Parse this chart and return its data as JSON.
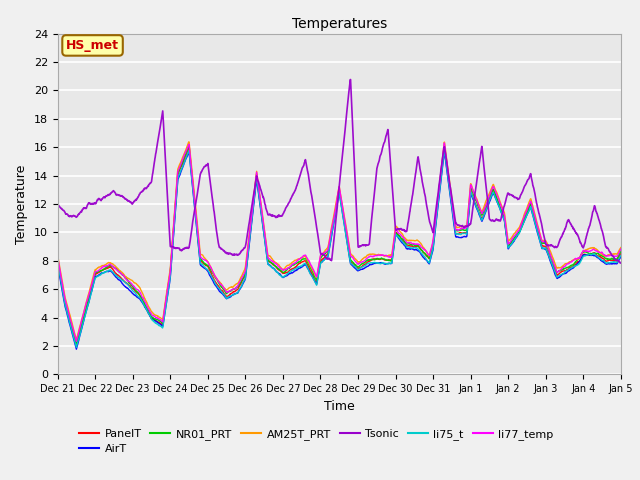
{
  "title": "Temperatures",
  "xlabel": "Time",
  "ylabel": "Temperature",
  "ylim": [
    0,
    24
  ],
  "fig_facecolor": "#f0f0f0",
  "ax_facecolor": "#e8e8e8",
  "annotation_text": "HS_met",
  "annotation_bg": "#ffffaa",
  "annotation_border": "#996600",
  "annotation_text_color": "#cc0000",
  "series_order": [
    "PanelT",
    "AirT",
    "NR01_PRT",
    "AM25T_PRT",
    "Tsonic",
    "li75_t",
    "li77_temp"
  ],
  "series": {
    "PanelT": {
      "color": "#ff0000",
      "lw": 1.0
    },
    "AirT": {
      "color": "#0000ff",
      "lw": 1.0
    },
    "NR01_PRT": {
      "color": "#00cc00",
      "lw": 1.0
    },
    "AM25T_PRT": {
      "color": "#ff9900",
      "lw": 1.0
    },
    "Tsonic": {
      "color": "#9900cc",
      "lw": 1.2
    },
    "li75_t": {
      "color": "#00cccc",
      "lw": 1.0
    },
    "li77_temp": {
      "color": "#ff00ff",
      "lw": 1.0
    }
  },
  "xtick_labels": [
    "Dec 21",
    "Dec 22",
    "Dec 23",
    "Dec 24",
    "Dec 25",
    "Dec 26",
    "Dec 27",
    "Dec 28",
    "Dec 29",
    "Dec 30",
    "Dec 31",
    "Jan 1",
    "Jan 2",
    "Jan 3",
    "Jan 4",
    "Jan 5"
  ],
  "ytick_labels": [
    0,
    2,
    4,
    6,
    8,
    10,
    12,
    14,
    16,
    18,
    20,
    22,
    24
  ],
  "n_days": 15,
  "pts_per_day": 144,
  "base_profile_x": [
    0,
    0.2,
    0.5,
    0.7,
    1,
    1.4,
    1.8,
    2.2,
    2.5,
    2.8,
    3.0,
    3.2,
    3.5,
    3.8,
    4.0,
    4.2,
    4.5,
    4.8,
    5.0,
    5.3,
    5.6,
    6.0,
    6.3,
    6.6,
    6.9,
    7.0,
    7.2,
    7.5,
    7.8,
    8.0,
    8.3,
    8.6,
    8.9,
    9.0,
    9.3,
    9.6,
    9.9,
    10.0,
    10.3,
    10.6,
    10.9,
    11.0,
    11.3,
    11.6,
    11.9,
    12.0,
    12.3,
    12.6,
    12.9,
    13.0,
    13.3,
    13.6,
    13.9,
    14.0,
    14.3,
    14.6,
    14.9,
    15.0
  ],
  "base_profile_y": [
    8,
    5,
    2,
    4,
    7,
    7.5,
    6.5,
    5.5,
    4,
    3.5,
    7,
    14,
    16,
    8,
    7.5,
    6.5,
    5.5,
    6,
    7,
    14,
    8,
    7,
    7.5,
    8,
    6.5,
    8,
    8.5,
    13,
    8,
    7.5,
    8,
    8,
    8,
    10,
    9,
    9,
    8,
    9,
    16,
    10,
    10,
    13,
    11,
    13,
    11,
    9,
    10,
    12,
    9,
    9,
    7,
    7.5,
    8,
    8.5,
    8.5,
    8,
    8,
    8.5
  ],
  "tsonic_profile_x": [
    0,
    0.3,
    0.5,
    0.8,
    1,
    1.5,
    2,
    2.3,
    2.5,
    2.8,
    3,
    3.3,
    3.5,
    3.8,
    4,
    4.3,
    4.5,
    4.8,
    5,
    5.3,
    5.6,
    6,
    6.3,
    6.6,
    7,
    7.3,
    7.5,
    7.8,
    8,
    8.3,
    8.5,
    8.8,
    9,
    9.3,
    9.6,
    9.9,
    10,
    10.3,
    10.6,
    11,
    11.3,
    11.5,
    11.8,
    12,
    12.3,
    12.6,
    13,
    13.3,
    13.6,
    14,
    14.3,
    14.6,
    15
  ],
  "tsonic_profile_y": [
    12,
    11,
    11,
    12,
    12,
    13,
    12,
    13,
    13.5,
    18.5,
    9,
    8.8,
    9,
    14,
    15,
    9,
    8.5,
    8.5,
    9,
    14,
    11,
    11,
    13,
    15,
    8.5,
    8,
    13,
    21,
    9,
    9,
    14.5,
    17,
    10,
    10,
    15.5,
    11,
    10,
    16,
    11,
    10.5,
    16,
    11,
    11,
    13,
    12.5,
    14,
    9,
    9,
    11,
    9,
    12,
    9,
    8
  ]
}
